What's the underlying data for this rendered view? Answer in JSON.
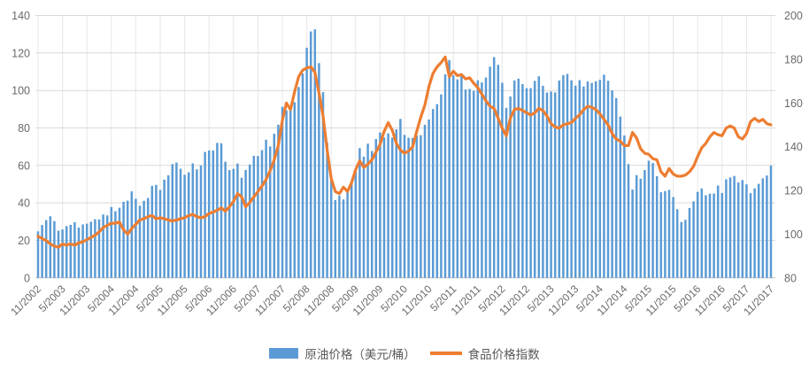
{
  "page": {
    "background": "#FFFFFF"
  },
  "chart_data": {
    "type": "combo",
    "title": "",
    "x": {
      "frequency": "monthly",
      "start": "11/2002",
      "end": "11/2017",
      "tick_labels": [
        "11/2002",
        "5/2003",
        "11/2003",
        "5/2004",
        "11/2004",
        "5/2005",
        "11/2005",
        "5/2006",
        "11/2006",
        "5/2007",
        "11/2007",
        "5/2008",
        "11/2008",
        "5/2009",
        "11/2009",
        "5/2010",
        "11/2010",
        "5/2011",
        "11/2011",
        "5/2012",
        "11/2012",
        "5/2013",
        "11/2013",
        "5/2014",
        "11/2014",
        "5/2015",
        "11/2015",
        "5/2016",
        "11/2016",
        "5/2017",
        "11/2017"
      ]
    },
    "axes": {
      "left": {
        "min": 0,
        "max": 140,
        "step": 20,
        "tick_labels": [
          "0",
          "20",
          "40",
          "60",
          "80",
          "100",
          "120",
          "140"
        ]
      },
      "right": {
        "min": 80,
        "max": 200,
        "step": 20,
        "tick_labels": [
          "80",
          "100",
          "120",
          "140",
          "160",
          "180",
          "200"
        ]
      }
    },
    "grid": {
      "horizontal": true,
      "vertical": true,
      "h_color": "#d9d9d9",
      "v_color": "#e7e7e7",
      "axis_color": "#bfbfbf"
    },
    "legend_position": "bottom",
    "series": [
      {
        "name": "原油价格（美元/桶）",
        "type": "bar",
        "y_axis": "left",
        "color": "#5B9BD5",
        "values": [
          24.8,
          28.2,
          30.8,
          32.9,
          30.3,
          25.2,
          25.8,
          27.6,
          28.3,
          29.7,
          26.9,
          28.5,
          28.9,
          29.9,
          31.3,
          31.2,
          33.8,
          33.3,
          37.8,
          35.6,
          37.4,
          40.6,
          41.2,
          46.1,
          42.2,
          38.5,
          41.1,
          42.6,
          49.1,
          49.6,
          46.9,
          52.4,
          54.7,
          60.7,
          61.5,
          58.2,
          55.0,
          56.3,
          61.1,
          57.9,
          60.0,
          67.2,
          68.0,
          68.0,
          72.0,
          71.8,
          62.0,
          57.5,
          58.2,
          61.0,
          53.4,
          57.6,
          60.5,
          65.1,
          65.0,
          68.2,
          73.7,
          70.1,
          76.9,
          81.7,
          91.3,
          89.4,
          90.8,
          93.7,
          101.8,
          109.0,
          122.8,
          131.5,
          132.6,
          114.6,
          99.1,
          72.1,
          53.7,
          41.5,
          43.9,
          41.8,
          46.0,
          50.2,
          58.1,
          69.2,
          64.7,
          71.6,
          67.7,
          74.1,
          77.6,
          74.9,
          77.1,
          74.8,
          79.3,
          84.8,
          76.3,
          74.8,
          74.6,
          75.9,
          76.1,
          81.7,
          84.5,
          90.1,
          92.7,
          97.9,
          108.6,
          116.2,
          108.1,
          105.9,
          107.9,
          100.5,
          100.8,
          99.8,
          105.4,
          104.3,
          106.9,
          112.7,
          117.8,
          113.7,
          104.1,
          90.7,
          96.8,
          105.3,
          106.3,
          103.4,
          101.2,
          101.2,
          105.1,
          107.6,
          102.5,
          98.9,
          99.4,
          99.0,
          105.3,
          108.2,
          108.8,
          105.4,
          102.6,
          105.5,
          102.1,
          104.8,
          104.0,
          104.9,
          105.7,
          108.4,
          105.2,
          100.0,
          95.9,
          86.1,
          76.0,
          60.7,
          47.1,
          54.8,
          52.9,
          57.5,
          62.5,
          61.3,
          54.3,
          45.7,
          46.3,
          46.9,
          43.1,
          36.6,
          29.8,
          31.0,
          37.3,
          40.8,
          45.9,
          47.7,
          44.1,
          44.9,
          45.0,
          49.3,
          45.3,
          52.6,
          53.6,
          54.4,
          50.9,
          52.2,
          49.9,
          45.2,
          47.7,
          50.2,
          53.1,
          54.6,
          59.9
        ]
      },
      {
        "name": "食品价格指数",
        "type": "line",
        "y_axis": "right",
        "color": "#ED7D31",
        "values": [
          99,
          98,
          97,
          95.5,
          94.5,
          94,
          95.5,
          95,
          95.5,
          95,
          96,
          96.5,
          97.5,
          98.5,
          99.5,
          101,
          103,
          104,
          105,
          105,
          105.5,
          102,
          100,
          102.5,
          104.5,
          106.5,
          107,
          108,
          108.5,
          107,
          107.5,
          107,
          106.5,
          106,
          106.5,
          107,
          107.5,
          108.5,
          109,
          108,
          107.5,
          108,
          109.5,
          110,
          111,
          112,
          110.5,
          112.5,
          115,
          118.5,
          117,
          112.5,
          114.5,
          117,
          119.5,
          122,
          125,
          129,
          134,
          140.5,
          152,
          160,
          157,
          165,
          172,
          175,
          176,
          176.5,
          174,
          164.5,
          154,
          138.5,
          125.5,
          119.5,
          118.5,
          121.5,
          119.5,
          123.5,
          129.5,
          133.5,
          130.5,
          132,
          134,
          137.5,
          141,
          147,
          151,
          147.5,
          141.5,
          138.5,
          137,
          138,
          140,
          147,
          153.5,
          159,
          167.5,
          173.5,
          176.5,
          178.5,
          181,
          172,
          174.5,
          172.5,
          173,
          171,
          171.5,
          169,
          167,
          164,
          161,
          158.5,
          157.5,
          153,
          148.5,
          145,
          153,
          157,
          157.5,
          156.5,
          155.5,
          154.5,
          155.5,
          157.5,
          156.5,
          154,
          150.5,
          149,
          148.5,
          150,
          150.5,
          151,
          153,
          154.5,
          157,
          158.5,
          158,
          157,
          155,
          152.5,
          150,
          146,
          143.5,
          142.5,
          140.5,
          140.5,
          146.5,
          144,
          139,
          137,
          136.5,
          134.5,
          134,
          128.5,
          126.5,
          130,
          127.5,
          126.5,
          126.5,
          127,
          128.5,
          131,
          135.5,
          139.5,
          141.5,
          144.5,
          146.5,
          145.5,
          145,
          148.5,
          149.5,
          148.5,
          144.5,
          143.5,
          146,
          151.5,
          153,
          151.5,
          152.5,
          150.5,
          150
        ]
      }
    ]
  },
  "legend": {
    "items": [
      {
        "label": "原油价格（美元/桶）",
        "marker": "bar-swatch"
      },
      {
        "label": "食品价格指数",
        "marker": "line-swatch"
      }
    ]
  }
}
